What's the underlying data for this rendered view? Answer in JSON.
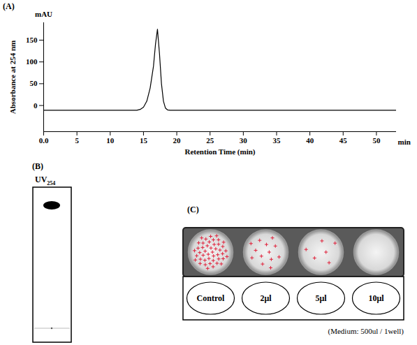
{
  "chart_data": {
    "type": "line",
    "panel_label": "(A)",
    "y_unit": "mAU",
    "x_unit": "min",
    "x_label": "Retention Time (min)",
    "y_label": "Absorbance at 254 nm",
    "x": [
      0,
      14,
      14.5,
      15,
      15.5,
      16,
      16.5,
      16.8,
      17.1,
      17.4,
      17.7,
      18,
      18.3,
      18.6,
      19,
      53
    ],
    "values": [
      -11,
      -11,
      -9,
      -4,
      10,
      40,
      90,
      140,
      175,
      120,
      50,
      10,
      -6,
      -10,
      -11,
      -11
    ],
    "color": "#000000",
    "xlim": [
      0,
      53
    ],
    "xticks": [
      {
        "value": 0,
        "label": "0.0"
      },
      5,
      10,
      15,
      20,
      25,
      30,
      35,
      40,
      45,
      50
    ],
    "ylim": [
      -60,
      190
    ],
    "yticks": [
      0,
      50,
      100,
      150
    ]
  },
  "panels": [
    {
      "label": "(B)",
      "header": {
        "text": "UV",
        "subscript": "254"
      }
    },
    {
      "label": "(C)",
      "wells": [
        {
          "label": "Control",
          "marks": 45
        },
        {
          "label": "2μl",
          "marks": 13
        },
        {
          "label": "5μl",
          "marks": 6
        },
        {
          "label": "10μl",
          "marks": 0
        }
      ],
      "caption": "(Medium: 500ul / 1well)"
    }
  ]
}
